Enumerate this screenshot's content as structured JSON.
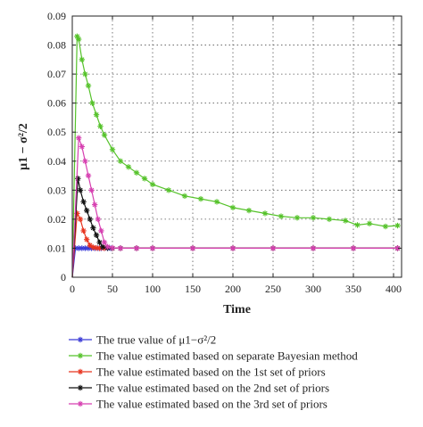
{
  "chart_data": {
    "type": "line",
    "title": "",
    "xlabel": "Time",
    "ylabel": "μ1 − σ²/2",
    "xlim": [
      0,
      410
    ],
    "ylim": [
      0,
      0.09
    ],
    "xticks": [
      0,
      50,
      100,
      150,
      200,
      250,
      300,
      350,
      400
    ],
    "yticks": [
      0,
      0.01,
      0.02,
      0.03,
      0.04,
      0.05,
      0.06,
      0.07,
      0.08,
      0.09
    ],
    "xtick_labels": [
      "0",
      "50",
      "100",
      "150",
      "200",
      "250",
      "300",
      "350",
      "400"
    ],
    "ytick_labels": [
      "0",
      "0.01",
      "0.02",
      "0.03",
      "0.04",
      "0.05",
      "0.06",
      "0.07",
      "0.08",
      "0.09"
    ],
    "grid": true,
    "legend_position": "bottom",
    "series": [
      {
        "name": "The true value of μ1−σ²/2",
        "color": "#3a3ad6",
        "marker": "star",
        "x": [
          0,
          4,
          8,
          12,
          16,
          20,
          24,
          28,
          32,
          36,
          40,
          44,
          48,
          60,
          80,
          100,
          150,
          200,
          250,
          300,
          350,
          405
        ],
        "y": [
          0,
          0.01,
          0.01,
          0.01,
          0.01,
          0.01,
          0.01,
          0.01,
          0.01,
          0.01,
          0.01,
          0.01,
          0.01,
          0.01,
          0.01,
          0.01,
          0.01,
          0.01,
          0.01,
          0.01,
          0.01,
          0.01
        ]
      },
      {
        "name": "The value estimated based on separate Bayesian method",
        "color": "#55c22a",
        "marker": "star",
        "x": [
          0,
          6,
          8,
          12,
          16,
          20,
          25,
          30,
          35,
          40,
          50,
          60,
          70,
          80,
          90,
          100,
          120,
          140,
          160,
          180,
          200,
          220,
          240,
          260,
          280,
          300,
          320,
          340,
          355,
          370,
          390,
          405
        ],
        "y": [
          0,
          0.083,
          0.082,
          0.075,
          0.07,
          0.066,
          0.06,
          0.056,
          0.052,
          0.049,
          0.044,
          0.04,
          0.038,
          0.036,
          0.034,
          0.032,
          0.03,
          0.028,
          0.027,
          0.026,
          0.024,
          0.023,
          0.022,
          0.021,
          0.0205,
          0.0205,
          0.02,
          0.0195,
          0.018,
          0.0185,
          0.0175,
          0.0178
        ]
      },
      {
        "name": "The value estimated based on the 1st set of priors",
        "color": "#e8341f",
        "marker": "star",
        "x": [
          0,
          6,
          10,
          14,
          18,
          22,
          26,
          30,
          34,
          40,
          50,
          60,
          80,
          100,
          150,
          200,
          250,
          300,
          350,
          405
        ],
        "y": [
          0,
          0.022,
          0.02,
          0.016,
          0.013,
          0.011,
          0.0103,
          0.0101,
          0.01,
          0.01,
          0.01,
          0.01,
          0.01,
          0.01,
          0.01,
          0.01,
          0.01,
          0.01,
          0.01,
          0.01
        ]
      },
      {
        "name": "The value estimated based on the 2nd set of priors",
        "color": "#111111",
        "marker": "star",
        "x": [
          0,
          7,
          10,
          14,
          18,
          22,
          26,
          30,
          34,
          38,
          44,
          50,
          60,
          80,
          100,
          150,
          200,
          250,
          300,
          350,
          405
        ],
        "y": [
          0,
          0.034,
          0.03,
          0.026,
          0.023,
          0.02,
          0.017,
          0.0145,
          0.012,
          0.0105,
          0.0101,
          0.01,
          0.01,
          0.01,
          0.01,
          0.01,
          0.01,
          0.01,
          0.01,
          0.01,
          0.01
        ]
      },
      {
        "name": "The value estimated based on the 3rd set of priors",
        "color": "#d63fb0",
        "marker": "star",
        "x": [
          0,
          8,
          12,
          16,
          20,
          24,
          28,
          32,
          36,
          40,
          44,
          50,
          60,
          80,
          100,
          150,
          200,
          250,
          300,
          350,
          405
        ],
        "y": [
          0,
          0.048,
          0.045,
          0.04,
          0.035,
          0.03,
          0.025,
          0.02,
          0.016,
          0.012,
          0.0105,
          0.0101,
          0.01,
          0.01,
          0.01,
          0.01,
          0.01,
          0.01,
          0.01,
          0.01,
          0.01
        ]
      }
    ]
  }
}
